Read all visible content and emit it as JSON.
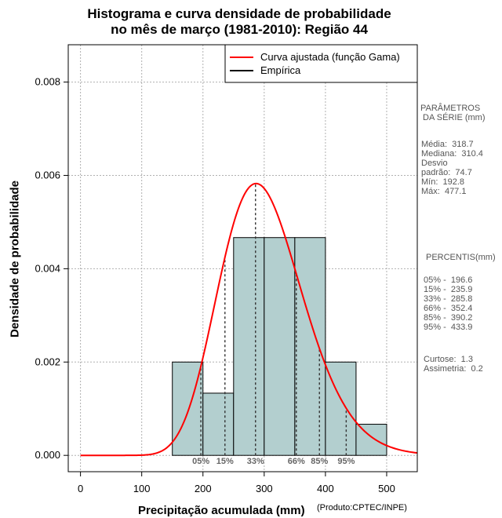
{
  "chart_data": {
    "type": "bar",
    "title_line1": "Histograma e curva densidade de probabilidade",
    "title_line2": "no mês de março (1981-2010): Região 44",
    "xlabel": "Precipitação acumulada (mm)",
    "ylabel": "Densidade de probabilidade",
    "credit": "(Produto:CPTEC/INPE)",
    "xlim": [
      -20,
      550
    ],
    "ylim": [
      -0.00035,
      0.0088
    ],
    "x_ticks": [
      "0",
      "100",
      "200",
      "300",
      "400",
      "500"
    ],
    "x_tick_values": [
      0,
      100,
      200,
      300,
      400,
      500
    ],
    "y_ticks": [
      "0.000",
      "0.002",
      "0.004",
      "0.006",
      "0.008"
    ],
    "y_tick_values": [
      0,
      0.002,
      0.004,
      0.006,
      0.008
    ],
    "grid": true,
    "bins": [
      {
        "x0": 150,
        "x1": 200,
        "density": 0.002
      },
      {
        "x0": 200,
        "x1": 250,
        "density": 0.001333
      },
      {
        "x0": 250,
        "x1": 300,
        "density": 0.004667
      },
      {
        "x0": 300,
        "x1": 350,
        "density": 0.004667
      },
      {
        "x0": 350,
        "x1": 400,
        "density": 0.004667
      },
      {
        "x0": 400,
        "x1": 450,
        "density": 0.002
      },
      {
        "x0": 450,
        "x1": 500,
        "density": 0.000667
      }
    ],
    "fitted_curve": {
      "name": "Curva ajustada (função Gama)",
      "color": "#ff0000",
      "shape": 18.7,
      "loc": 0,
      "scale": 16.2
    },
    "legend": [
      {
        "label": "Curva ajustada (função Gama)",
        "color": "#ff0000"
      },
      {
        "label": "Empírica",
        "color": "#000000"
      }
    ],
    "legend_position": "top-right",
    "bar_color": "#b3cfcf",
    "percentile_lines": [
      {
        "label": "05%",
        "x": 196.6
      },
      {
        "label": "15%",
        "x": 235.9
      },
      {
        "label": "33%",
        "x": 285.8
      },
      {
        "label": "66%",
        "x": 352.4
      },
      {
        "label": "85%",
        "x": 390.2
      },
      {
        "label": "95%",
        "x": 433.9
      }
    ]
  },
  "side_panel": {
    "params_title": "PARÂMETROS\n DA SÉRIE (mm)",
    "params": "Média:  318.7\nMediana:  310.4\nDesvio\npadrão:  74.7\nMín:  192.8\nMáx:  477.1",
    "percentis_title": "PERCENTIS(mm)",
    "percentis": "05% -  196.6\n15% -  235.9\n33% -  285.8\n66% -  352.4\n85% -  390.2\n95% -  433.9",
    "stats": "Curtose:  1.3\nAssimetria:  0.2"
  }
}
